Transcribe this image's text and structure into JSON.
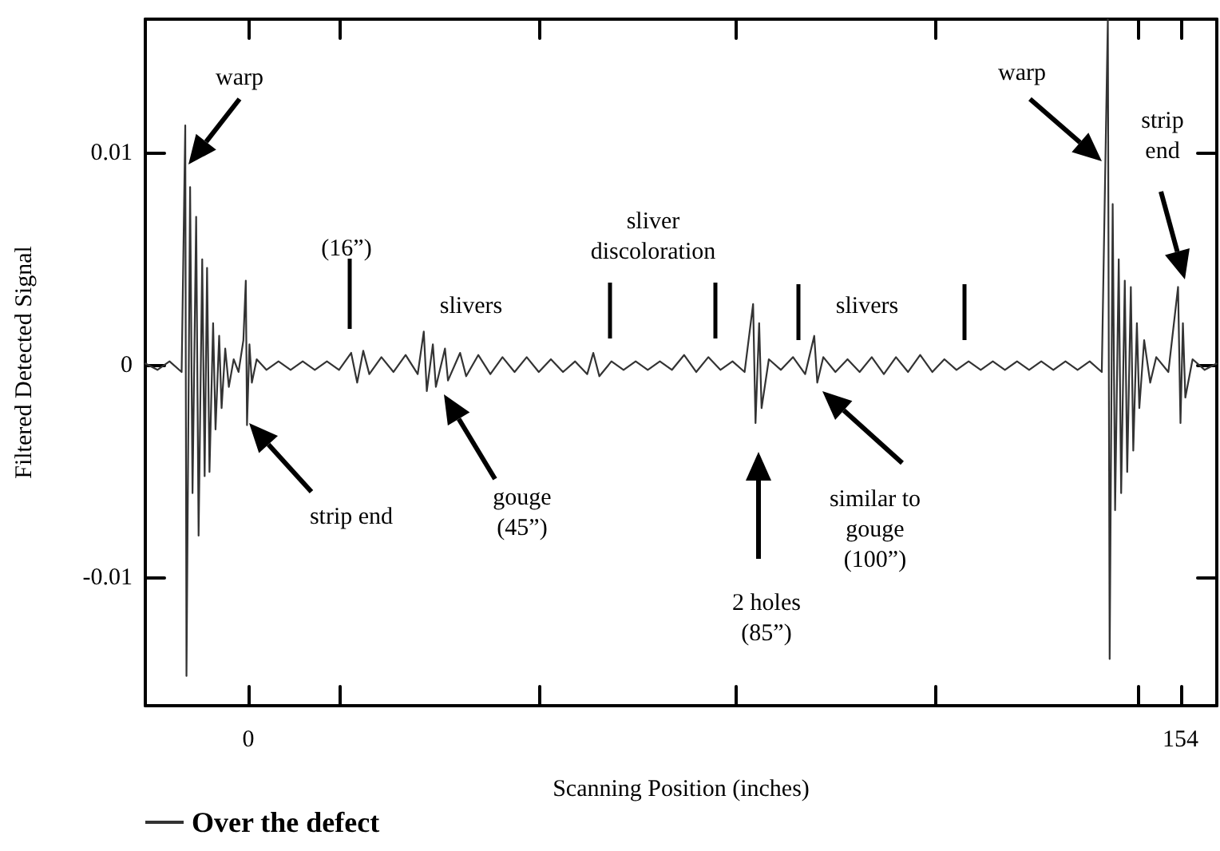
{
  "chart_data": {
    "type": "line",
    "xlabel": "Scanning Position (inches)",
    "ylabel": "Filtered Detected Signal",
    "xlim": [
      -17,
      160
    ],
    "ylim": [
      -0.016,
      0.0163
    ],
    "xticks": [
      0,
      {
        "value": 15.2,
        "label": null
      },
      {
        "value": 48,
        "label": null
      },
      {
        "value": 80.6,
        "label": null
      },
      {
        "value": 113.6,
        "label": null
      },
      {
        "value": 147,
        "label": null
      },
      154
    ],
    "yticks": [
      -0.01,
      0,
      0.01
    ],
    "grid": false,
    "legend": "bottom left",
    "marker": "none",
    "line_style": "solid",
    "series": [
      {
        "name": "Over the defect",
        "color": "#333333",
        "x": [
          -17,
          -15,
          -13,
          -11,
          -10.4,
          -10.2,
          -9.6,
          -9.2,
          -8.6,
          -8.2,
          -7.6,
          -7.2,
          -6.8,
          -6.4,
          -5.8,
          -5.4,
          -4.8,
          -4.4,
          -3.8,
          -3.2,
          -2.4,
          -1.6,
          -0.8,
          -0.4,
          -0.2,
          0.2,
          0.6,
          1.4,
          3,
          5,
          7,
          9,
          11,
          13,
          15,
          17,
          18,
          19,
          20,
          22,
          24,
          26,
          28,
          29,
          29.5,
          30.5,
          31,
          32.5,
          33,
          35,
          36,
          38,
          40,
          42,
          44,
          46,
          48,
          50,
          52,
          54,
          56,
          57,
          58,
          60,
          62,
          64,
          66,
          68,
          70,
          72,
          74,
          76,
          78,
          80,
          82,
          83.4,
          83.8,
          84.4,
          84.8,
          86,
          88,
          90,
          92,
          93.5,
          94,
          95,
          97,
          99,
          101,
          103,
          105,
          107,
          109,
          111,
          113,
          115,
          117,
          119,
          121,
          123,
          125,
          127,
          129,
          131,
          133,
          135,
          137,
          139,
          141,
          142,
          142.3,
          142.8,
          143.2,
          143.8,
          144.2,
          144.8,
          145.2,
          145.8,
          146.2,
          146.8,
          147.2,
          148,
          149,
          150,
          152,
          153.6,
          154,
          154.4,
          154.8,
          156,
          158,
          160
        ],
        "values": [
          0.0001,
          -0.0002,
          0.0002,
          -0.0003,
          0.0113,
          -0.0146,
          0.0084,
          -0.006,
          0.007,
          -0.008,
          0.005,
          -0.0052,
          0.0046,
          -0.005,
          0.002,
          -0.003,
          0.0014,
          -0.002,
          0.0008,
          -0.001,
          0.0003,
          -0.0003,
          0.0012,
          0.004,
          -0.0028,
          0.001,
          -0.0008,
          0.0003,
          -0.0002,
          0.0002,
          -0.0002,
          0.0002,
          -0.0002,
          0.0002,
          -0.0002,
          0.0006,
          -0.0008,
          0.0007,
          -0.0004,
          0.0004,
          -0.0003,
          0.0005,
          -0.0004,
          0.0016,
          -0.0012,
          0.001,
          -0.001,
          0.0008,
          -0.0007,
          0.0006,
          -0.0005,
          0.0005,
          -0.0004,
          0.0004,
          -0.0003,
          0.0004,
          -0.0003,
          0.0003,
          -0.0003,
          0.0002,
          -0.0004,
          0.0006,
          -0.0005,
          0.0002,
          -0.0002,
          0.0002,
          -0.0002,
          0.0002,
          -0.0002,
          0.0005,
          -0.0003,
          0.0004,
          -0.0002,
          0.0002,
          -0.0003,
          0.0029,
          -0.0027,
          0.002,
          -0.002,
          0.0003,
          -0.0002,
          0.0004,
          -0.0004,
          0.0014,
          -0.0008,
          0.0004,
          -0.0003,
          0.0003,
          -0.0003,
          0.0004,
          -0.0004,
          0.0004,
          -0.0003,
          0.0005,
          -0.0003,
          0.0003,
          -0.0002,
          0.0002,
          -0.0002,
          0.0002,
          -0.0002,
          0.0002,
          -0.0002,
          0.0002,
          -0.0002,
          0.0002,
          -0.0002,
          0.0002,
          -0.0003,
          0.0163,
          -0.0138,
          0.0076,
          -0.0068,
          0.005,
          -0.006,
          0.004,
          -0.005,
          0.0037,
          -0.004,
          0.002,
          -0.002,
          0.0012,
          -0.0008,
          0.0004,
          -0.0003,
          0.0037,
          -0.0027,
          0.002,
          -0.0015,
          0.0003,
          -0.0002,
          0.0001
        ]
      }
    ],
    "annotations": [
      "warp",
      "strip end",
      "gouge\n(45”)",
      "2 holes\n(85”)",
      "similar to\ngouge\n(100”)",
      "warp",
      "strip\nend",
      "(16”)",
      "slivers",
      "sliver\ndiscoloration",
      "slivers"
    ]
  }
}
